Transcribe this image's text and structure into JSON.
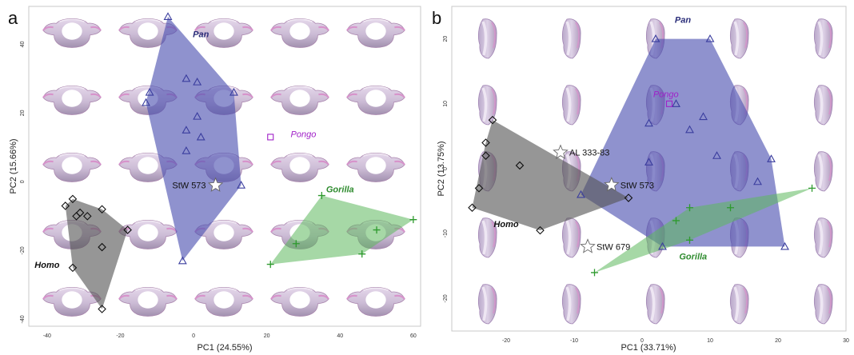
{
  "figure": {
    "panel_a_letter": "a",
    "panel_b_letter": "b"
  },
  "colors": {
    "pan": "#3a3d9e",
    "pongo": "#a020c8",
    "gorilla": "#2e9a2e",
    "homo": "#111111",
    "pan_fill": "#4b4fb0",
    "gorilla_fill": "#5cb85c",
    "homo_fill": "#555555"
  },
  "icons": {
    "bone_render": "vertebra-render-icon"
  },
  "chart_data": [
    {
      "panel": "a",
      "type": "scatter",
      "xlabel": "PC1 (24.55%)",
      "ylabel": "PC2 (15.66%)",
      "xlim": [
        -45,
        62
      ],
      "ylim": [
        -42,
        51
      ],
      "xticks": [
        -40,
        -20,
        0,
        20,
        40,
        60
      ],
      "yticks": [
        -40,
        -20,
        0,
        20,
        40
      ],
      "grid": false,
      "series": [
        {
          "name": "Pan",
          "marker": "triangle",
          "hull": true,
          "points": [
            [
              -7,
              48
            ],
            [
              -12,
              26
            ],
            [
              -13,
              23
            ],
            [
              -2,
              30
            ],
            [
              1,
              29
            ],
            [
              11,
              26
            ],
            [
              1,
              19
            ],
            [
              -2,
              15
            ],
            [
              2,
              13
            ],
            [
              -2,
              9
            ],
            [
              13,
              -1
            ],
            [
              -3,
              -23
            ]
          ]
        },
        {
          "name": "Pongo",
          "marker": "square",
          "hull": false,
          "points": [
            [
              21,
              13
            ]
          ]
        },
        {
          "name": "Gorilla",
          "marker": "plus",
          "hull": true,
          "points": [
            [
              35,
              -4
            ],
            [
              60,
              -11
            ],
            [
              50,
              -14
            ],
            [
              46,
              -21
            ],
            [
              28,
              -18
            ],
            [
              21,
              -24
            ]
          ]
        },
        {
          "name": "Homo",
          "marker": "diamond",
          "hull": true,
          "points": [
            [
              -35,
              -7
            ],
            [
              -33,
              -5
            ],
            [
              -32,
              -10
            ],
            [
              -31,
              -9
            ],
            [
              -29,
              -10
            ],
            [
              -25,
              -8
            ],
            [
              -18,
              -14
            ],
            [
              -25,
              -19
            ],
            [
              -33,
              -25
            ],
            [
              -25,
              -37
            ]
          ]
        }
      ],
      "species_labels": [
        {
          "text": "Pan",
          "x": 2,
          "y": 42,
          "series": "Pan"
        },
        {
          "text": "Pongo",
          "x": 30,
          "y": 13,
          "series": "Pongo"
        },
        {
          "text": "Gorilla",
          "x": 40,
          "y": -3,
          "series": "Gorilla"
        },
        {
          "text": "Homo",
          "x": -40,
          "y": -25,
          "series": "Homo"
        }
      ],
      "fossils": [
        {
          "label": "StW 573",
          "x": 6,
          "y": -1
        }
      ]
    },
    {
      "panel": "b",
      "type": "scatter",
      "xlabel": "PC1 (33.71%)",
      "ylabel": "PC2 (13.75%)",
      "xlim": [
        -28,
        30
      ],
      "ylim": [
        -25,
        25
      ],
      "xticks": [
        -20,
        -10,
        0,
        10,
        20,
        30
      ],
      "yticks": [
        -20,
        -10,
        0,
        10,
        20
      ],
      "grid": false,
      "series": [
        {
          "name": "Pan",
          "marker": "triangle",
          "hull": true,
          "points": [
            [
              2,
              20
            ],
            [
              10,
              20
            ],
            [
              5,
              10
            ],
            [
              9,
              8
            ],
            [
              1,
              7
            ],
            [
              7,
              6
            ],
            [
              11,
              2
            ],
            [
              1,
              1
            ],
            [
              19,
              1.5
            ],
            [
              17,
              -2
            ],
            [
              -9,
              -4
            ],
            [
              3,
              -12
            ],
            [
              21,
              -12
            ]
          ]
        },
        {
          "name": "Pongo",
          "marker": "square",
          "hull": false,
          "points": [
            [
              4,
              10
            ]
          ]
        },
        {
          "name": "Gorilla",
          "marker": "plus",
          "hull": true,
          "points": [
            [
              25,
              -3
            ],
            [
              7,
              -6
            ],
            [
              13,
              -6
            ],
            [
              5,
              -8
            ],
            [
              7,
              -11
            ],
            [
              -7,
              -16
            ]
          ]
        },
        {
          "name": "Homo",
          "marker": "diamond",
          "hull": true,
          "points": [
            [
              -22,
              7.5
            ],
            [
              -23,
              4
            ],
            [
              -23,
              2
            ],
            [
              -18,
              0.5
            ],
            [
              -24,
              -3
            ],
            [
              -25,
              -6
            ],
            [
              -15,
              -9.5
            ],
            [
              -2,
              -4.5
            ]
          ]
        }
      ],
      "species_labels": [
        {
          "text": "Pan",
          "x": 6,
          "y": 22.5,
          "series": "Pan"
        },
        {
          "text": "Pongo",
          "x": 3.5,
          "y": 11,
          "series": "Pongo"
        },
        {
          "text": "Gorilla",
          "x": 7.5,
          "y": -14,
          "series": "Gorilla"
        },
        {
          "text": "Homo",
          "x": -20,
          "y": -9,
          "series": "Homo"
        }
      ],
      "fossils": [
        {
          "label": "AL 333-83",
          "x": -12,
          "y": 2.5
        },
        {
          "label": "StW 573",
          "x": -4.5,
          "y": -2.5
        },
        {
          "label": "StW 679",
          "x": -8,
          "y": -12
        }
      ]
    }
  ]
}
